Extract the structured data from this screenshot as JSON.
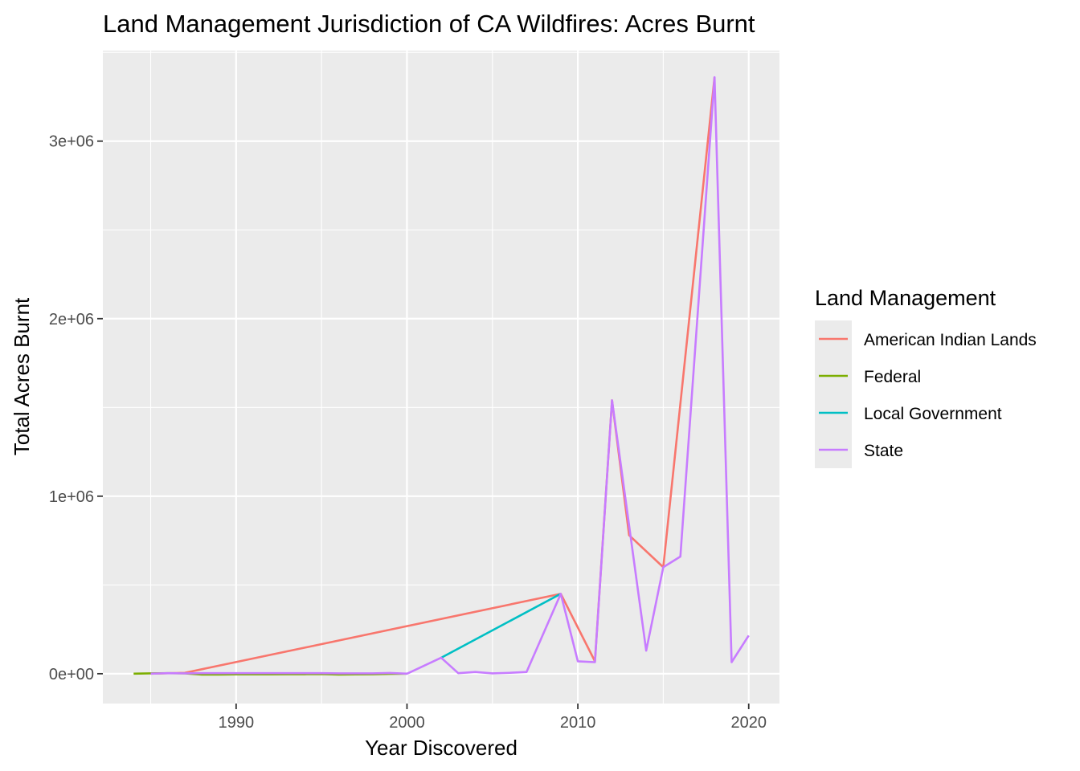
{
  "chart_data": {
    "type": "line",
    "title": "Land Management Jurisdiction of CA Wildfires: Acres Burnt",
    "xlabel": "Year Discovered",
    "ylabel": "Total Acres Burnt",
    "xlim": [
      1982.2,
      2021.8
    ],
    "ylim": [
      -168000,
      3510000
    ],
    "x_ticks": [
      1990,
      2000,
      2010,
      2020
    ],
    "x_tick_labels": [
      "1990",
      "2000",
      "2010",
      "2020"
    ],
    "y_ticks": [
      0,
      1000000,
      2000000,
      3000000
    ],
    "y_tick_labels": [
      "0e+00",
      "1e+06",
      "2e+06",
      "3e+06"
    ],
    "grid": true,
    "legend": {
      "title": "Land Management",
      "position": "right"
    },
    "series": [
      {
        "name": "American Indian Lands",
        "color": "#F8766D",
        "x": [
          1985,
          1987,
          2009,
          2011,
          2012,
          2013,
          2015,
          2018
        ],
        "y": [
          0,
          5000,
          450000,
          70000,
          1540000,
          780000,
          600000,
          3360000
        ]
      },
      {
        "name": "Federal",
        "color": "#7CAE00",
        "x": [
          1984,
          1985,
          1986,
          1987,
          1988,
          1989,
          1990,
          1991,
          1992,
          1993,
          1994,
          1995,
          1996,
          1997,
          1998,
          1999,
          2000
        ],
        "y": [
          0,
          2000,
          3000,
          2000,
          -5000,
          -5000,
          -4000,
          -4000,
          -4000,
          -3000,
          -3000,
          -2000,
          -5000,
          -4000,
          -3000,
          -1000,
          0
        ]
      },
      {
        "name": "Local Government",
        "color": "#00BFC4",
        "x": [
          2002,
          2009
        ],
        "y": [
          90000,
          450000
        ]
      },
      {
        "name": "State",
        "color": "#C77CFF",
        "x": [
          1985,
          1986,
          1987,
          1988,
          1989,
          1990,
          1991,
          1992,
          1993,
          1994,
          1995,
          1996,
          1997,
          1998,
          1999,
          2000,
          2002,
          2003,
          2004,
          2005,
          2006,
          2007,
          2009,
          2010,
          2011,
          2012,
          2014,
          2015,
          2016,
          2018,
          2019,
          2020
        ],
        "y": [
          0,
          3000,
          2000,
          3000,
          3000,
          3000,
          3000,
          3000,
          3000,
          3000,
          3000,
          2000,
          2000,
          2000,
          4000,
          0,
          90000,
          3000,
          10000,
          2000,
          5000,
          10000,
          450000,
          70000,
          65000,
          1540000,
          130000,
          600000,
          660000,
          3360000,
          65000,
          215000
        ]
      }
    ]
  }
}
